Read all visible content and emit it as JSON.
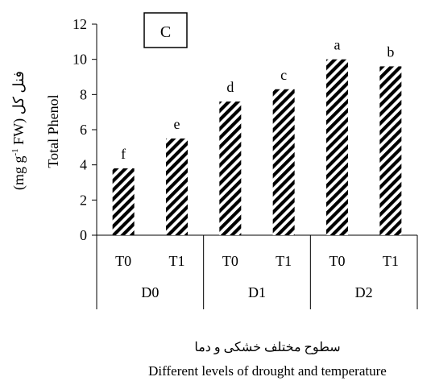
{
  "chart_data": {
    "type": "bar",
    "panel_label": "C",
    "categories": [
      "T0",
      "T1",
      "T0",
      "T1",
      "T0",
      "T1"
    ],
    "groups": [
      {
        "label": "D0",
        "categories": [
          "T0",
          "T1"
        ]
      },
      {
        "label": "D1",
        "categories": [
          "T0",
          "T1"
        ]
      },
      {
        "label": "D2",
        "categories": [
          "T0",
          "T1"
        ]
      }
    ],
    "values": [
      3.8,
      5.5,
      7.6,
      8.3,
      10.0,
      9.6
    ],
    "letters": [
      "f",
      "e",
      "d",
      "c",
      "a",
      "b"
    ],
    "ylim": [
      0,
      12
    ],
    "yticks": [
      "0",
      "2",
      "4",
      "6",
      "8",
      "10",
      "12"
    ],
    "ylabel_line1": "(mg g",
    "ylabel_sup": "-1",
    "ylabel_line1_end": " FW) فنل کل",
    "ylabel_line2": "Total Phenol",
    "xlabel_fa": "سطوح مختلف خشکی و دما",
    "xlabel_en": "Different levels of drought and temperature",
    "bar_pattern": "diagonal-hatch",
    "bar_color": "#000000",
    "grid": false,
    "legend": "none"
  }
}
